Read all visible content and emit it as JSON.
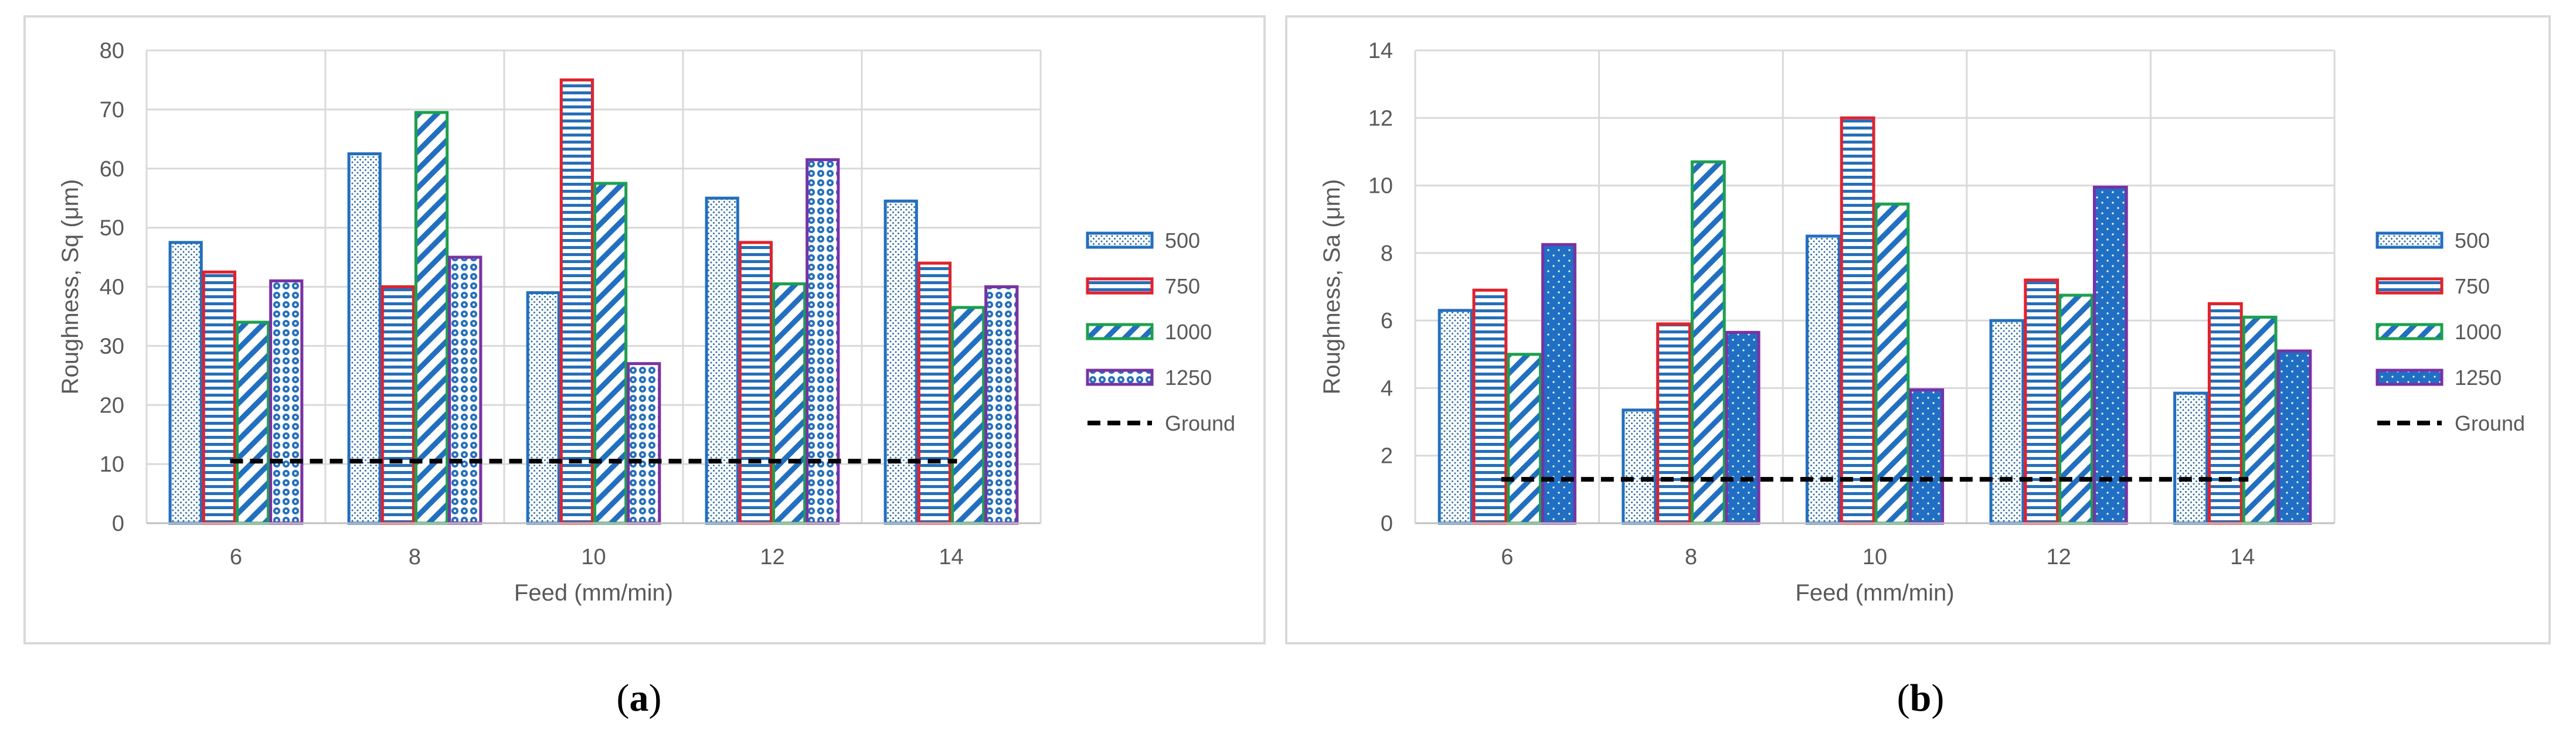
{
  "chart_data": [
    {
      "type": "bar",
      "panel_label": "a",
      "xlabel": "Feed (mm/min)",
      "ylabel": "Roughness, Sq (μm)",
      "ylim": [
        0,
        80
      ],
      "yticks": [
        0,
        10,
        20,
        30,
        40,
        50,
        60,
        70,
        80
      ],
      "grid": true,
      "legend_position": "right",
      "categories": [
        "6",
        "8",
        "10",
        "12",
        "14"
      ],
      "series": [
        {
          "name": "500",
          "values": [
            47.5,
            62.5,
            39,
            55,
            54.5
          ],
          "border_color": "#1F6FC5",
          "pattern": "dots-fine"
        },
        {
          "name": "750",
          "values": [
            42.5,
            40,
            75,
            47.5,
            44
          ],
          "border_color": "#EE1C24",
          "pattern": "horizontal-lines"
        },
        {
          "name": "1000",
          "values": [
            34,
            69.5,
            57.5,
            40.5,
            36.5
          ],
          "border_color": "#17A34A",
          "pattern": "diagonal-lines"
        },
        {
          "name": "1250",
          "values": [
            41,
            45,
            27,
            61.5,
            40
          ],
          "border_color": "#7B2FA8",
          "pattern": "circles"
        }
      ],
      "reference_line": {
        "name": "Ground",
        "value": 10.5,
        "style": "dashed",
        "color": "#000000"
      }
    },
    {
      "type": "bar",
      "panel_label": "b",
      "xlabel": "Feed (mm/min)",
      "ylabel": "Roughness, Sa (μm)",
      "ylim": [
        0,
        14
      ],
      "yticks": [
        0,
        2,
        4,
        6,
        8,
        10,
        12,
        14
      ],
      "grid": true,
      "legend_position": "right",
      "categories": [
        "6",
        "8",
        "10",
        "12",
        "14"
      ],
      "series": [
        {
          "name": "500",
          "values": [
            6.3,
            3.35,
            8.5,
            6,
            3.85
          ],
          "border_color": "#1F6FC5",
          "pattern": "dots-fine"
        },
        {
          "name": "750",
          "values": [
            6.9,
            5.9,
            12,
            7.2,
            6.5
          ],
          "border_color": "#EE1C24",
          "pattern": "horizontal-lines"
        },
        {
          "name": "1000",
          "values": [
            5,
            10.7,
            9.45,
            6.75,
            6.1
          ],
          "border_color": "#17A34A",
          "pattern": "diagonal-lines"
        },
        {
          "name": "1250",
          "values": [
            8.25,
            5.65,
            3.95,
            9.95,
            5.1
          ],
          "border_color": "#7B2FA8",
          "pattern": "solid-dots"
        }
      ],
      "reference_line": {
        "name": "Ground",
        "value": 1.3,
        "style": "dashed",
        "color": "#000000"
      }
    }
  ]
}
